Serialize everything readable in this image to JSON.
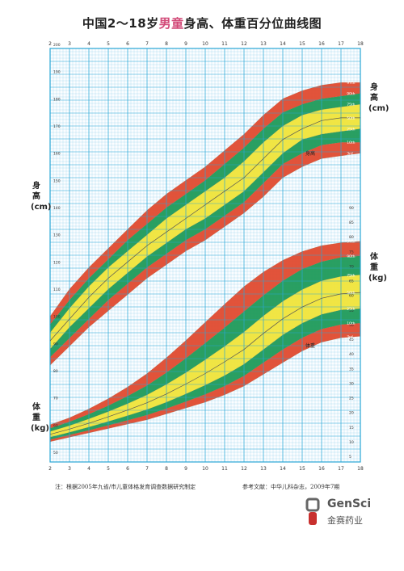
{
  "header": {
    "title_pre": "中国2～18岁",
    "title_boy": "男童",
    "title_post": "身高、体重百分位曲线图"
  },
  "labels": {
    "left_height": "身高(cm)",
    "left_weight": "体重(kg)",
    "right_height": "身高(cm)",
    "right_weight": "体重(kg)",
    "band_height": "身高",
    "band_weight": "体重"
  },
  "footer": {
    "note": "注：根据2005年九省/市儿童体格发育调查数据研究制定",
    "reference": "参考文献：中华儿科杂志，2009年7期"
  },
  "brand": {
    "name_en": "GenSci",
    "name_cn": "金赛药业"
  },
  "colors": {
    "grid": "#2aa7d6",
    "band_outer": "#e04a2f",
    "band_mid": "#1f9a5a",
    "band_inner": "#f0e43a",
    "median": "#555555",
    "title_accent": "#d24a78"
  },
  "chart_data": [
    {
      "type": "area",
      "title": "",
      "xlabel": "",
      "ylabel": "身高(cm)",
      "x": [
        2,
        3,
        4,
        5,
        6,
        7,
        8,
        9,
        10,
        11,
        12,
        13,
        14,
        15,
        16,
        17,
        18
      ],
      "xlim": [
        2,
        18
      ],
      "ylim": [
        50,
        200
      ],
      "series": [
        {
          "name": "3rd",
          "values": [
            82,
            89,
            96,
            102,
            108,
            114,
            119,
            124,
            128,
            133,
            138,
            144,
            151,
            155,
            158,
            159,
            160
          ]
        },
        {
          "name": "10th",
          "values": [
            85,
            92,
            99,
            106,
            112,
            118,
            123,
            128,
            132,
            137,
            142,
            149,
            156,
            160,
            163,
            164,
            164
          ]
        },
        {
          "name": "25th",
          "values": [
            88,
            96,
            103,
            110,
            116,
            122,
            127,
            132,
            136,
            141,
            146,
            153,
            160,
            165,
            167,
            168,
            169
          ]
        },
        {
          "name": "50th",
          "values": [
            91,
            99,
            107,
            114,
            120,
            126,
            131,
            136,
            141,
            146,
            151,
            158,
            165,
            169,
            172,
            173,
            173
          ]
        },
        {
          "name": "75th",
          "values": [
            94,
            103,
            111,
            118,
            124,
            130,
            136,
            141,
            146,
            151,
            157,
            164,
            170,
            174,
            176,
            177,
            178
          ]
        },
        {
          "name": "90th",
          "values": [
            97,
            106,
            114,
            121,
            128,
            134,
            140,
            145,
            150,
            156,
            162,
            169,
            175,
            178,
            180,
            181,
            182
          ]
        },
        {
          "name": "97th",
          "values": [
            100,
            110,
            118,
            125,
            132,
            139,
            145,
            150,
            155,
            161,
            167,
            174,
            180,
            183,
            185,
            186,
            186
          ]
        }
      ]
    },
    {
      "type": "area",
      "title": "",
      "xlabel": "",
      "ylabel": "体重(kg)",
      "x": [
        2,
        3,
        4,
        5,
        6,
        7,
        8,
        9,
        10,
        11,
        12,
        13,
        14,
        15,
        16,
        17,
        18
      ],
      "xlim": [
        2,
        18
      ],
      "ylim": [
        5,
        90
      ],
      "series": [
        {
          "name": "3rd",
          "values": [
            10.0,
            11.5,
            13.0,
            14.5,
            16.0,
            17.5,
            19.5,
            21.5,
            23.5,
            26.0,
            29.0,
            33.0,
            37.0,
            41.0,
            44.0,
            45.5,
            46.0
          ]
        },
        {
          "name": "10th",
          "values": [
            10.7,
            12.3,
            13.9,
            15.6,
            17.3,
            19.1,
            21.3,
            23.7,
            26.2,
            29.0,
            32.5,
            37.0,
            41.5,
            45.5,
            48.5,
            50.0,
            50.5
          ]
        },
        {
          "name": "25th",
          "values": [
            11.5,
            13.2,
            15.0,
            16.9,
            18.9,
            21.0,
            23.5,
            26.3,
            29.3,
            32.6,
            36.5,
            41.5,
            46.5,
            50.5,
            53.5,
            55.0,
            55.5
          ]
        },
        {
          "name": "50th",
          "values": [
            12.5,
            14.3,
            16.3,
            18.5,
            20.8,
            23.3,
            26.3,
            29.7,
            33.3,
            37.3,
            41.5,
            47.0,
            52.0,
            56.0,
            59.0,
            60.5,
            61.0
          ]
        },
        {
          "name": "75th",
          "values": [
            13.5,
            15.5,
            17.8,
            20.3,
            23.0,
            26.0,
            29.6,
            33.6,
            38.0,
            42.6,
            47.5,
            53.0,
            58.0,
            62.0,
            65.0,
            66.5,
            67.0
          ]
        },
        {
          "name": "90th",
          "values": [
            14.6,
            16.8,
            19.4,
            22.3,
            25.6,
            29.2,
            33.6,
            38.5,
            43.7,
            49.0,
            54.5,
            60.0,
            65.0,
            69.0,
            71.5,
            73.0,
            73.5
          ]
        },
        {
          "name": "97th",
          "values": [
            15.8,
            18.2,
            21.2,
            24.7,
            28.7,
            33.3,
            38.7,
            44.6,
            50.8,
            57.0,
            63.0,
            68.0,
            72.0,
            75.0,
            77.0,
            78.0,
            78.5
          ]
        }
      ]
    }
  ]
}
